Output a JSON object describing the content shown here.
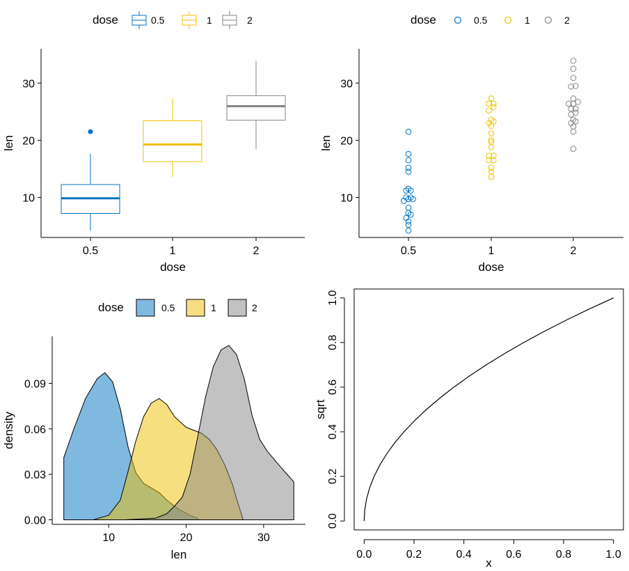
{
  "colors": {
    "0.5": "#0073C2",
    "1": "#EFC000",
    "2": "#868686"
  },
  "chart_data": [
    {
      "type": "box",
      "legend": {
        "title": "dose",
        "entries": [
          "0.5",
          "1",
          "2"
        ],
        "position": "top"
      },
      "xlabel": "dose",
      "ylabel": "len",
      "categories": [
        "0.5",
        "1",
        "2"
      ],
      "ylim": [
        3,
        36
      ],
      "yticks": [
        "10",
        "20",
        "30"
      ],
      "boxes": [
        {
          "name": "0.5",
          "lower_whisker": 4.2,
          "q1": 7.2,
          "median": 9.85,
          "q3": 12.25,
          "upper_whisker": 17.6,
          "outliers": [
            21.5
          ]
        },
        {
          "name": "1",
          "lower_whisker": 13.6,
          "q1": 16.25,
          "median": 19.25,
          "q3": 23.4,
          "upper_whisker": 27.3,
          "outliers": []
        },
        {
          "name": "2",
          "lower_whisker": 18.5,
          "q1": 23.5,
          "median": 25.95,
          "q3": 27.8,
          "upper_whisker": 33.9,
          "outliers": []
        }
      ]
    },
    {
      "type": "dotplot",
      "legend": {
        "title": "dose",
        "entries": [
          "0.5",
          "1",
          "2"
        ],
        "position": "top"
      },
      "xlabel": "dose",
      "ylabel": "len",
      "categories": [
        "0.5",
        "1",
        "2"
      ],
      "ylim": [
        3,
        36
      ],
      "yticks": [
        "10",
        "20",
        "30"
      ],
      "groups": [
        {
          "name": "0.5",
          "values": [
            4.2,
            5.2,
            5.8,
            6.4,
            7.0,
            7.3,
            8.2,
            9.4,
            9.7,
            9.7,
            10.0,
            10.0,
            11.2,
            11.2,
            11.5,
            14.5,
            15.2,
            16.5,
            17.6,
            21.5
          ]
        },
        {
          "name": "1",
          "values": [
            13.6,
            14.5,
            15.2,
            16.5,
            16.5,
            17.3,
            17.3,
            18.8,
            19.7,
            20.0,
            21.2,
            22.5,
            23.0,
            23.3,
            23.6,
            25.2,
            25.8,
            26.4,
            26.4,
            27.3
          ]
        },
        {
          "name": "2",
          "values": [
            18.5,
            21.5,
            22.4,
            23.0,
            23.3,
            23.6,
            24.5,
            24.8,
            25.5,
            25.5,
            26.4,
            26.4,
            26.7,
            27.3,
            29.4,
            29.5,
            30.9,
            32.5,
            33.9
          ]
        }
      ]
    },
    {
      "type": "density",
      "legend": {
        "title": "dose",
        "entries": [
          "0.5",
          "1",
          "2"
        ],
        "position": "top"
      },
      "xlabel": "len",
      "ylabel": "density",
      "xlim": [
        2.7,
        35.4
      ],
      "ylim": [
        -0.003,
        0.121
      ],
      "xticks": [
        "10",
        "20",
        "30"
      ],
      "yticks": [
        "0.00",
        "0.03",
        "0.06",
        "0.09"
      ],
      "series": [
        {
          "name": "0.5",
          "x": [
            4.2,
            5.5,
            7,
            8.5,
            9.5,
            10.5,
            11.5,
            12.5,
            13.5,
            14.5,
            15.5,
            16.5,
            17.5,
            19,
            20.5,
            21.5
          ],
          "y": [
            0.041,
            0.06,
            0.08,
            0.093,
            0.097,
            0.091,
            0.073,
            0.048,
            0.031,
            0.024,
            0.021,
            0.018,
            0.013,
            0.007,
            0.003,
            0.001
          ]
        },
        {
          "name": "1",
          "x": [
            4.2,
            8,
            10,
            11.5,
            12.5,
            13.5,
            14.5,
            15.5,
            16.5,
            17.5,
            18.5,
            20,
            21,
            22,
            23,
            24,
            25,
            26,
            26.5,
            27.3
          ],
          "y": [
            0.0,
            0.0,
            0.003,
            0.013,
            0.032,
            0.052,
            0.068,
            0.077,
            0.08,
            0.076,
            0.068,
            0.061,
            0.059,
            0.057,
            0.053,
            0.046,
            0.036,
            0.023,
            0.014,
            0.001
          ]
        },
        {
          "name": "2",
          "x": [
            7,
            12,
            16,
            17.5,
            18.5,
            19.5,
            20.5,
            21.5,
            22.5,
            23.5,
            24.5,
            25.5,
            26.5,
            27.5,
            28.5,
            29.5,
            30.5,
            31.5,
            32.5,
            33.9
          ],
          "y": [
            0.0,
            0.0,
            0.001,
            0.004,
            0.009,
            0.015,
            0.03,
            0.055,
            0.081,
            0.101,
            0.112,
            0.115,
            0.109,
            0.093,
            0.069,
            0.053,
            0.045,
            0.039,
            0.033,
            0.025
          ]
        }
      ]
    },
    {
      "type": "line",
      "xlabel": "x",
      "ylabel": "sqrt",
      "function": "sqrt",
      "xlim": [
        -0.04,
        1.04
      ],
      "ylim": [
        -0.04,
        1.04
      ],
      "xticks": [
        "0.0",
        "0.2",
        "0.4",
        "0.6",
        "0.8",
        "1.0"
      ],
      "yticks": [
        "0.0",
        "0.2",
        "0.4",
        "0.6",
        "0.8",
        "1.0"
      ],
      "x": [
        0,
        0.0025,
        0.01,
        0.0225,
        0.04,
        0.0625,
        0.09,
        0.1225,
        0.16,
        0.2025,
        0.25,
        0.3025,
        0.36,
        0.4225,
        0.49,
        0.5625,
        0.64,
        0.7225,
        0.81,
        0.9025,
        1.0
      ],
      "y": [
        0,
        0.05,
        0.1,
        0.15,
        0.2,
        0.25,
        0.3,
        0.35,
        0.4,
        0.45,
        0.5,
        0.55,
        0.6,
        0.65,
        0.7,
        0.75,
        0.8,
        0.85,
        0.9,
        0.95,
        1.0
      ]
    }
  ]
}
